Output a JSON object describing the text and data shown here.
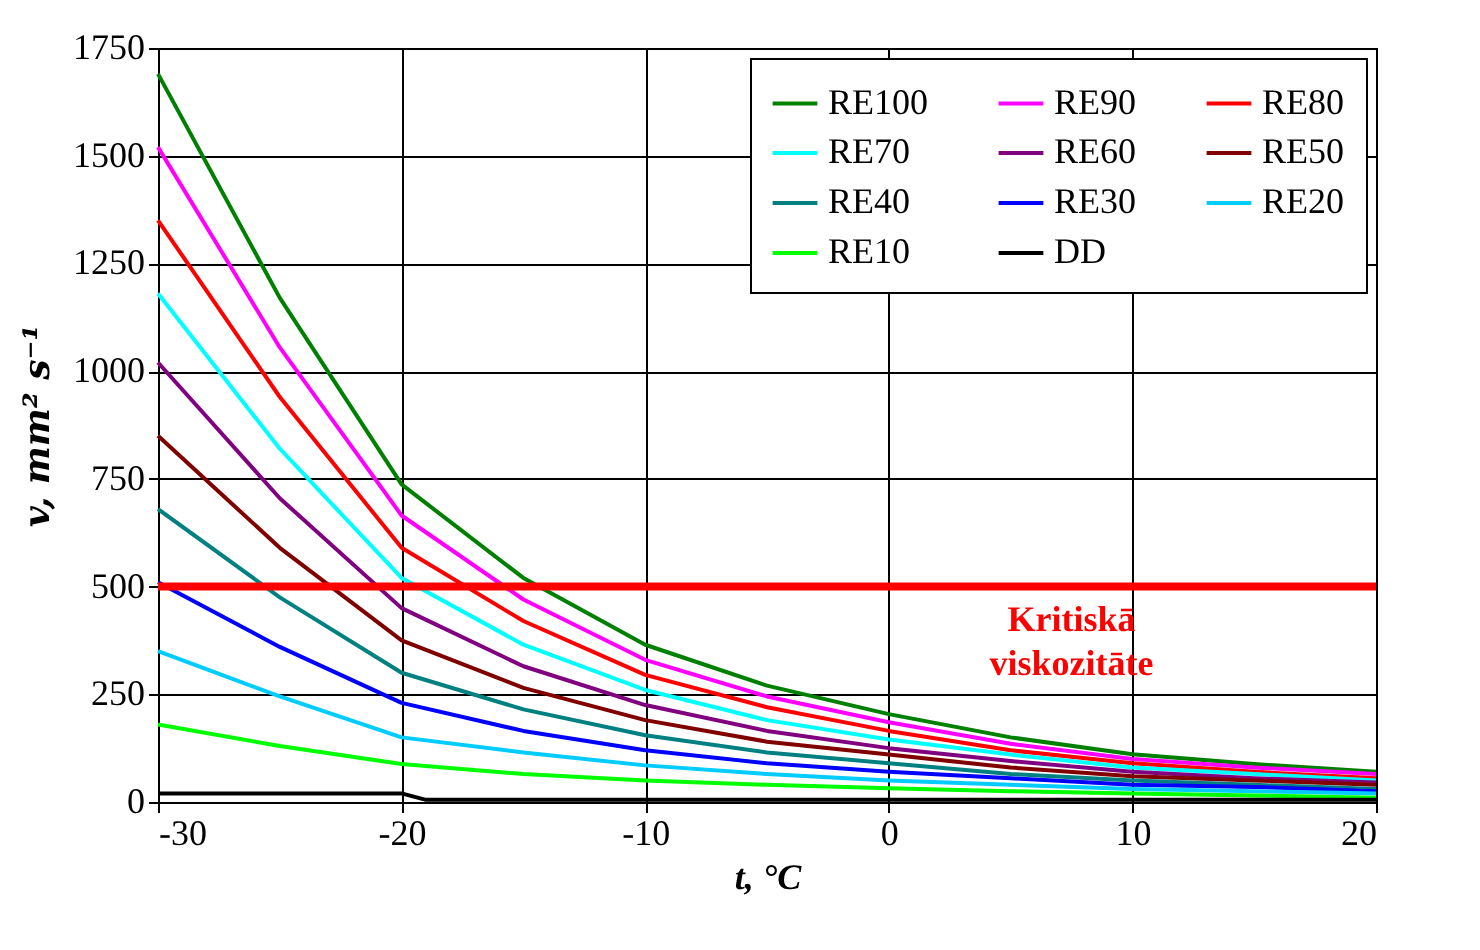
{
  "chart_data": {
    "type": "line",
    "xlabel": "t, °C",
    "ylabel": "v, mm² s⁻¹",
    "x": [
      -30,
      -25,
      -20,
      -15,
      -10,
      -5,
      0,
      5,
      10,
      15,
      20
    ],
    "series": [
      {
        "name": "RE100",
        "color": "#008000",
        "values": [
          1690,
          1170,
          737,
          520,
          365,
          270,
          204,
          150,
          111,
          88,
          70
        ]
      },
      {
        "name": "RE90",
        "color": "#ff00ff",
        "values": [
          1520,
          1055,
          665,
          470,
          330,
          245,
          185,
          135,
          100,
          80,
          65
        ]
      },
      {
        "name": "RE80",
        "color": "#ff0000",
        "values": [
          1350,
          940,
          590,
          420,
          295,
          220,
          165,
          120,
          90,
          70,
          55
        ]
      },
      {
        "name": "RE70",
        "color": "#00ffff",
        "values": [
          1180,
          820,
          520,
          365,
          260,
          190,
          145,
          110,
          80,
          65,
          50
        ]
      },
      {
        "name": "RE60",
        "color": "#800080",
        "values": [
          1020,
          705,
          450,
          315,
          225,
          165,
          125,
          95,
          70,
          55,
          45
        ]
      },
      {
        "name": "RE50",
        "color": "#800000",
        "values": [
          850,
          590,
          375,
          265,
          190,
          140,
          110,
          80,
          60,
          50,
          40
        ]
      },
      {
        "name": "RE40",
        "color": "#008080",
        "values": [
          680,
          475,
          300,
          215,
          155,
          115,
          90,
          65,
          50,
          40,
          30
        ]
      },
      {
        "name": "RE30",
        "color": "#0000ff",
        "values": [
          510,
          360,
          230,
          165,
          120,
          90,
          70,
          55,
          40,
          35,
          25
        ]
      },
      {
        "name": "RE20",
        "color": "#00ccff",
        "values": [
          350,
          245,
          150,
          115,
          85,
          65,
          50,
          40,
          30,
          25,
          20
        ]
      },
      {
        "name": "RE10",
        "color": "#00ff00",
        "values": [
          180,
          130,
          88,
          65,
          50,
          40,
          32,
          25,
          20,
          15,
          10
        ]
      },
      {
        "name": "DD",
        "color": "#000000",
        "x": [
          -30,
          -20,
          -19,
          20
        ],
        "values": [
          20,
          20,
          5,
          5
        ]
      }
    ],
    "ref_lines": [
      {
        "axis": "y",
        "value": 500,
        "label": "Kritiskā viskozitāte",
        "color": "#ff0000"
      }
    ],
    "xlim": [
      -30,
      20
    ],
    "xticks": [
      -30,
      -20,
      -10,
      0,
      10,
      20
    ],
    "ylim": [
      0,
      1750
    ],
    "yticks": [
      0,
      250,
      500,
      750,
      1000,
      1250,
      1500,
      1750
    ],
    "grid": true,
    "legend": "top right",
    "line_style": "solid",
    "marker": "none"
  }
}
